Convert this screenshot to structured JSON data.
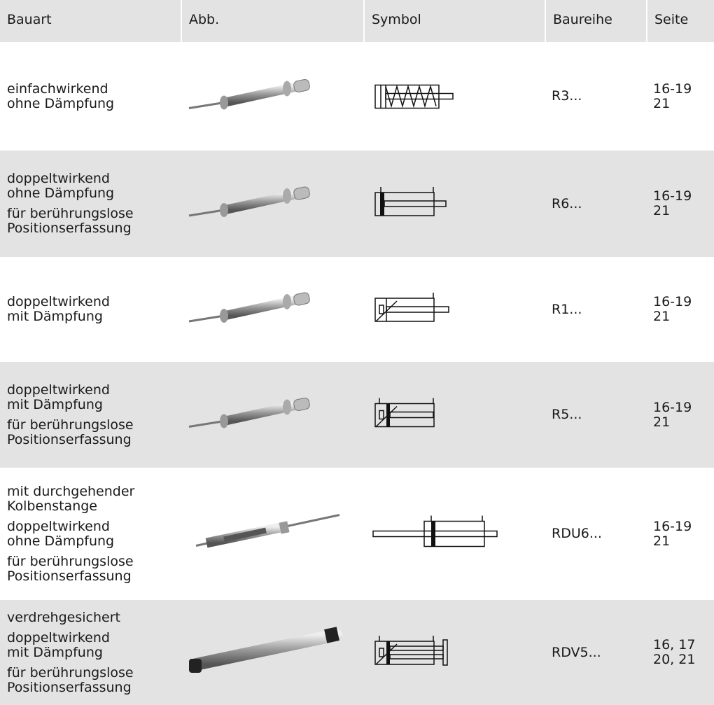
{
  "table": {
    "header": [
      "Bauart",
      "Abb.",
      "Symbol",
      "Baureihe",
      "Seite"
    ],
    "rows": [
      {
        "bauart": [
          [
            "einfachwirkend",
            "ohne Dämpfung"
          ]
        ],
        "baureihe": "R3...",
        "seite": [
          "16-19",
          "21"
        ]
      },
      {
        "bauart": [
          [
            "doppeltwirkend",
            "ohne Dämpfung"
          ],
          [
            "für berührungslose",
            "Positionserfassung"
          ]
        ],
        "baureihe": "R6...",
        "seite": [
          "16-19",
          "21"
        ]
      },
      {
        "bauart": [
          [
            "doppeltwirkend",
            "mit Dämpfung"
          ]
        ],
        "baureihe": "R1...",
        "seite": [
          "16-19",
          "21"
        ]
      },
      {
        "bauart": [
          [
            "doppeltwirkend",
            "mit Dämpfung"
          ],
          [
            "für berührungslose",
            "Positionserfassung"
          ]
        ],
        "baureihe": "R5...",
        "seite": [
          "16-19",
          "21"
        ]
      },
      {
        "bauart": [
          [
            "mit durchgehender",
            "Kolbenstange"
          ],
          [
            "doppeltwirkend",
            "ohne Dämpfung"
          ],
          [
            "für berührungslose",
            "Positionserfassung"
          ]
        ],
        "baureihe": "RDU6...",
        "seite": [
          "16-19",
          "21"
        ]
      },
      {
        "bauart": [
          [
            "verdrehgesichert"
          ],
          [
            "doppeltwirkend",
            "mit Dämpfung"
          ],
          [
            "für berührungslose",
            "Positionserfassung"
          ]
        ],
        "baureihe": "RDV5...",
        "seite": [
          "16, 17",
          "20, 21"
        ]
      }
    ]
  }
}
